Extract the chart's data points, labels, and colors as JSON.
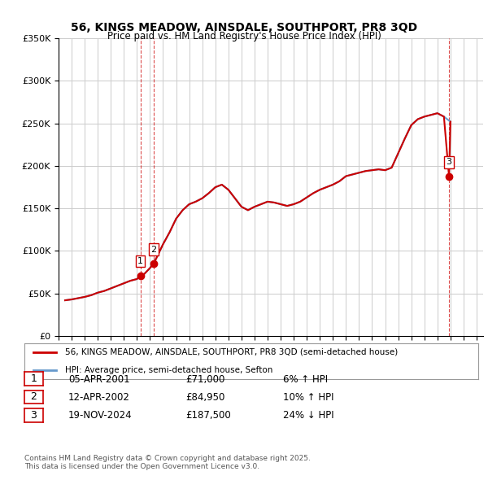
{
  "title": "56, KINGS MEADOW, AINSDALE, SOUTHPORT, PR8 3QD",
  "subtitle": "Price paid vs. HM Land Registry's House Price Index (HPI)",
  "ylabel": "",
  "background_color": "#ffffff",
  "plot_bg_color": "#ffffff",
  "grid_color": "#cccccc",
  "sale_color": "#cc0000",
  "hpi_color": "#6699cc",
  "sale_marker_color": "#cc0000",
  "transactions": [
    {
      "label": "1",
      "date_x": 2001.27,
      "price": 71000,
      "note": "05-APR-2001",
      "pct": "6% ↑ HPI"
    },
    {
      "label": "2",
      "date_x": 2002.28,
      "price": 84950,
      "note": "12-APR-2002",
      "pct": "10% ↑ HPI"
    },
    {
      "label": "3",
      "date_x": 2024.89,
      "price": 187500,
      "note": "19-NOV-2024",
      "pct": "24% ↓ HPI"
    }
  ],
  "xmin": 1995.0,
  "xmax": 2027.5,
  "ymin": 0,
  "ymax": 350000,
  "yticks": [
    0,
    50000,
    100000,
    150000,
    200000,
    250000,
    300000,
    350000
  ],
  "ytick_labels": [
    "£0",
    "£50K",
    "£100K",
    "£150K",
    "£200K",
    "£250K",
    "£300K",
    "£350K"
  ],
  "xticks": [
    1995,
    1996,
    1997,
    1998,
    1999,
    2000,
    2001,
    2002,
    2003,
    2004,
    2005,
    2006,
    2007,
    2008,
    2009,
    2010,
    2011,
    2012,
    2013,
    2014,
    2015,
    2016,
    2017,
    2018,
    2019,
    2020,
    2021,
    2022,
    2023,
    2024,
    2025,
    2026,
    2027
  ],
  "legend_items": [
    {
      "label": "56, KINGS MEADOW, AINSDALE, SOUTHPORT, PR8 3QD (semi-detached house)",
      "color": "#cc0000"
    },
    {
      "label": "HPI: Average price, semi-detached house, Sefton",
      "color": "#6699cc"
    }
  ],
  "table_rows": [
    [
      "1",
      "05-APR-2001",
      "£71,000",
      "6% ↑ HPI"
    ],
    [
      "2",
      "12-APR-2002",
      "£84,950",
      "10% ↑ HPI"
    ],
    [
      "3",
      "19-NOV-2024",
      "£187,500",
      "24% ↓ HPI"
    ]
  ],
  "footnote": "Contains HM Land Registry data © Crown copyright and database right 2025.\nThis data is licensed under the Open Government Licence v3.0.",
  "hpi_data": {
    "years": [
      1995.5,
      1996.0,
      1996.5,
      1997.0,
      1997.5,
      1998.0,
      1998.5,
      1999.0,
      1999.5,
      2000.0,
      2000.5,
      2001.0,
      2001.5,
      2002.0,
      2002.5,
      2003.0,
      2003.5,
      2004.0,
      2004.5,
      2005.0,
      2005.5,
      2006.0,
      2006.5,
      2007.0,
      2007.5,
      2008.0,
      2008.5,
      2009.0,
      2009.5,
      2010.0,
      2010.5,
      2011.0,
      2011.5,
      2012.0,
      2012.5,
      2013.0,
      2013.5,
      2014.0,
      2014.5,
      2015.0,
      2015.5,
      2016.0,
      2016.5,
      2017.0,
      2017.5,
      2018.0,
      2018.5,
      2019.0,
      2019.5,
      2020.0,
      2020.5,
      2021.0,
      2021.5,
      2022.0,
      2022.5,
      2023.0,
      2023.5,
      2024.0,
      2024.5,
      2025.0
    ],
    "values": [
      42000,
      43000,
      44500,
      46000,
      48000,
      51000,
      53000,
      56000,
      59000,
      62000,
      65000,
      67000,
      72000,
      80000,
      92000,
      108000,
      122000,
      138000,
      148000,
      155000,
      158000,
      162000,
      168000,
      175000,
      178000,
      172000,
      162000,
      152000,
      148000,
      152000,
      155000,
      158000,
      157000,
      155000,
      153000,
      155000,
      158000,
      163000,
      168000,
      172000,
      175000,
      178000,
      182000,
      188000,
      190000,
      192000,
      194000,
      195000,
      196000,
      195000,
      198000,
      215000,
      232000,
      248000,
      255000,
      258000,
      260000,
      262000,
      258000,
      252000
    ]
  },
  "sale_hpi_data": {
    "years": [
      1995.5,
      1996.0,
      1996.5,
      1997.0,
      1997.5,
      1998.0,
      1998.5,
      1999.0,
      1999.5,
      2000.0,
      2000.5,
      2001.0,
      2001.27,
      2001.5,
      2002.0,
      2002.28,
      2002.5,
      2003.0,
      2003.5,
      2004.0,
      2004.5,
      2005.0,
      2005.5,
      2006.0,
      2006.5,
      2007.0,
      2007.5,
      2008.0,
      2008.5,
      2009.0,
      2009.5,
      2010.0,
      2010.5,
      2011.0,
      2011.5,
      2012.0,
      2012.5,
      2013.0,
      2013.5,
      2014.0,
      2014.5,
      2015.0,
      2015.5,
      2016.0,
      2016.5,
      2017.0,
      2017.5,
      2018.0,
      2018.5,
      2019.0,
      2019.5,
      2020.0,
      2020.5,
      2021.0,
      2021.5,
      2022.0,
      2022.5,
      2023.0,
      2023.5,
      2024.0,
      2024.5,
      2024.89,
      2025.0
    ],
    "values": [
      42000,
      43000,
      44500,
      46000,
      48000,
      51000,
      53000,
      56000,
      59000,
      62000,
      65000,
      67000,
      71000,
      72000,
      80000,
      84950,
      92000,
      108000,
      122000,
      138000,
      148000,
      155000,
      158000,
      162000,
      168000,
      175000,
      178000,
      172000,
      162000,
      152000,
      148000,
      152000,
      155000,
      158000,
      157000,
      155000,
      153000,
      155000,
      158000,
      163000,
      168000,
      172000,
      175000,
      178000,
      182000,
      188000,
      190000,
      192000,
      194000,
      195000,
      196000,
      195000,
      198000,
      215000,
      232000,
      248000,
      255000,
      258000,
      260000,
      262000,
      258000,
      187500,
      252000
    ]
  }
}
